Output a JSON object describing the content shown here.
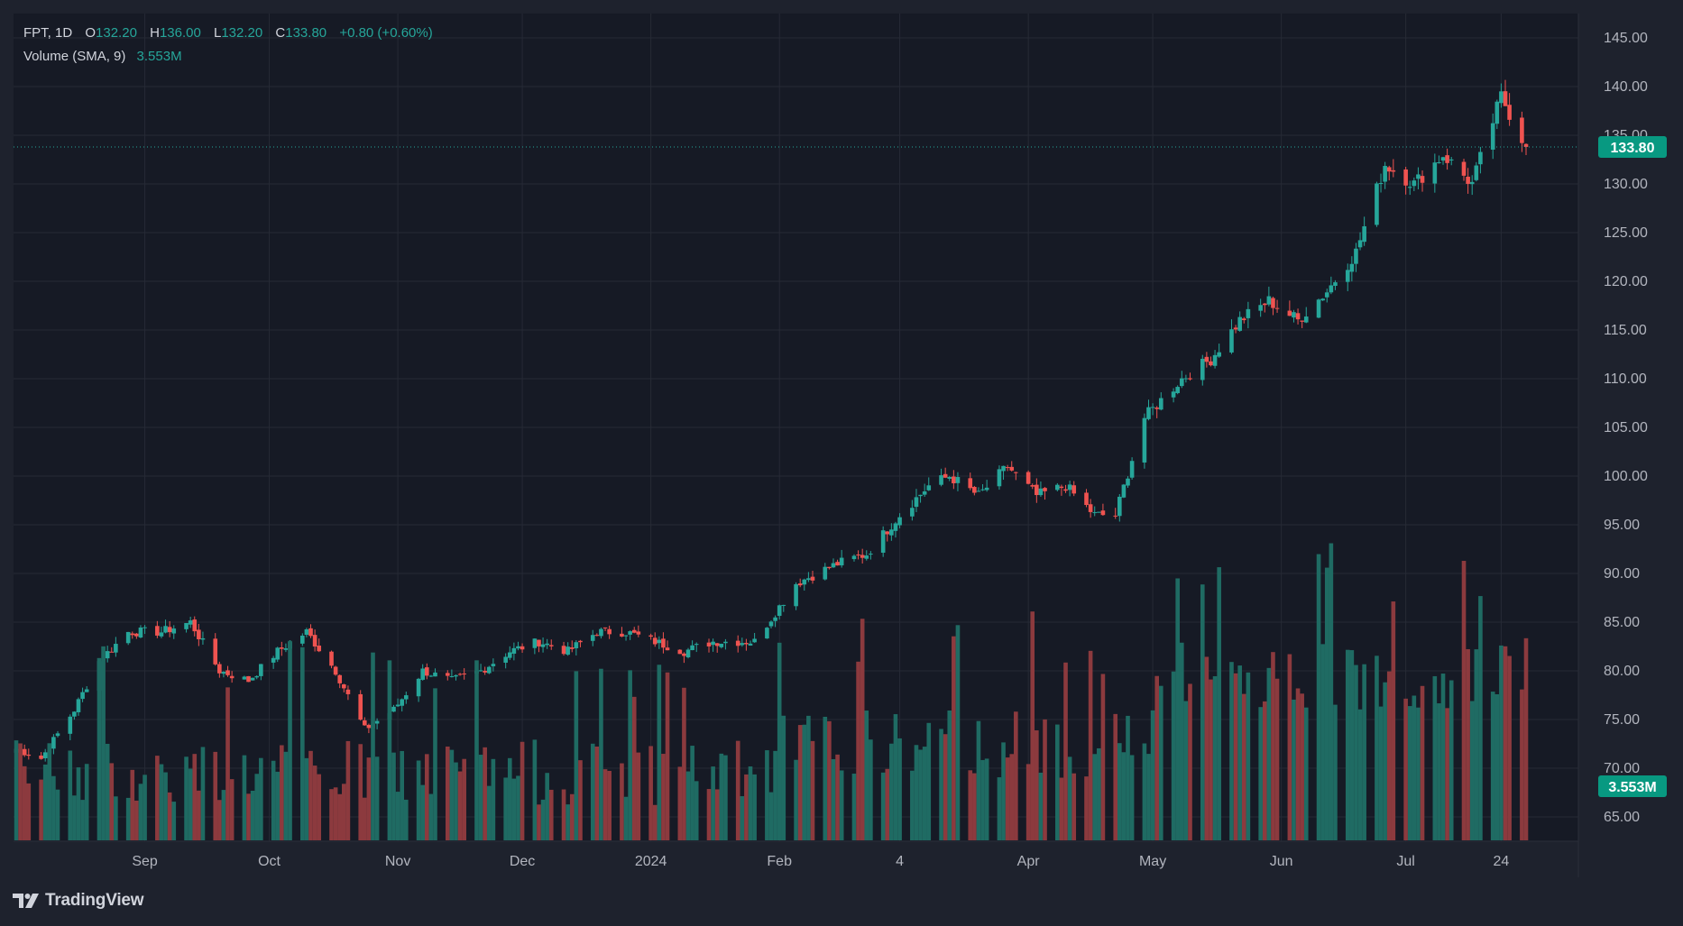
{
  "legend": {
    "symbol": "FPT, 1D",
    "o_label": "O",
    "o_value": "132.20",
    "h_label": "H",
    "h_value": "136.00",
    "l_label": "L",
    "l_value": "132.20",
    "c_label": "C",
    "c_value": "133.80",
    "change": "+0.80 (+0.60%)",
    "volume_label": "Volume (SMA, 9)",
    "volume_value": "3.553M"
  },
  "brand": {
    "name": "TradingView"
  },
  "colors": {
    "background": "#1e222d",
    "plot_background": "#161a25",
    "grid": "#262a35",
    "up": "#26a69a",
    "down": "#ef5350",
    "volume_up": "#1f6b63",
    "volume_down": "#8c3a3e",
    "text": "#d1d4dc",
    "axis_text": "#b2b5be",
    "badge": "#089981"
  },
  "chart_data": {
    "type": "candlestick",
    "title": "FPT, 1D",
    "x_ticks": [
      "Sep",
      "Oct",
      "Nov",
      "Dec",
      "2024",
      "Feb",
      "4",
      "Apr",
      "May",
      "Jun",
      "Jul",
      "24"
    ],
    "y_ticks": [
      "145.00",
      "140.00",
      "135.00",
      "130.00",
      "125.00",
      "120.00",
      "115.00",
      "110.00",
      "105.00",
      "100.00",
      "95.00",
      "90.00",
      "85.00",
      "80.00",
      "75.00",
      "70.00",
      "65.00"
    ],
    "y_range": [
      62.5,
      147.5
    ],
    "last_price": 133.8,
    "last_price_label": "133.80",
    "volume_label": "3.553M",
    "anchors": [
      [
        72,
        "08-01"
      ],
      [
        71,
        "08-07"
      ],
      [
        76,
        "08-15"
      ],
      [
        81,
        "08-21"
      ],
      [
        84,
        "08-28"
      ],
      [
        84,
        "09-05"
      ],
      [
        85,
        "09-12"
      ],
      [
        80,
        "09-19"
      ],
      [
        79,
        "09-26"
      ],
      [
        82,
        "10-03"
      ],
      [
        84,
        "10-10"
      ],
      [
        80,
        "10-17"
      ],
      [
        74,
        "10-24"
      ],
      [
        76,
        "10-31"
      ],
      [
        80,
        "11-07"
      ],
      [
        79,
        "11-14"
      ],
      [
        80,
        "11-21"
      ],
      [
        82,
        "11-28"
      ],
      [
        83,
        "12-05"
      ],
      [
        82,
        "12-12"
      ],
      [
        84,
        "12-19"
      ],
      [
        84,
        "12-26"
      ],
      [
        83,
        "01-02"
      ],
      [
        82,
        "01-09"
      ],
      [
        83,
        "01-16"
      ],
      [
        83,
        "01-23"
      ],
      [
        83,
        "01-26"
      ],
      [
        89,
        "02-05"
      ],
      [
        91,
        "02-15"
      ],
      [
        92,
        "02-22"
      ],
      [
        96,
        "03-01"
      ],
      [
        99,
        "03-08"
      ],
      [
        100,
        "03-13"
      ],
      [
        98,
        "03-20"
      ],
      [
        101,
        "03-27"
      ],
      [
        98,
        "04-03"
      ],
      [
        99,
        "04-10"
      ],
      [
        96,
        "04-17"
      ],
      [
        96,
        "04-22"
      ],
      [
        106,
        "04-29"
      ],
      [
        110,
        "05-08"
      ],
      [
        112,
        "05-15"
      ],
      [
        116,
        "05-22"
      ],
      [
        118,
        "05-29"
      ],
      [
        116,
        "06-05"
      ],
      [
        119,
        "06-12"
      ],
      [
        123,
        "06-19"
      ],
      [
        132,
        "06-26"
      ],
      [
        130,
        "07-03"
      ],
      [
        133,
        "07-10"
      ],
      [
        130,
        "07-17"
      ],
      [
        139,
        "07-24"
      ],
      [
        133.8,
        "07-30"
      ]
    ]
  }
}
